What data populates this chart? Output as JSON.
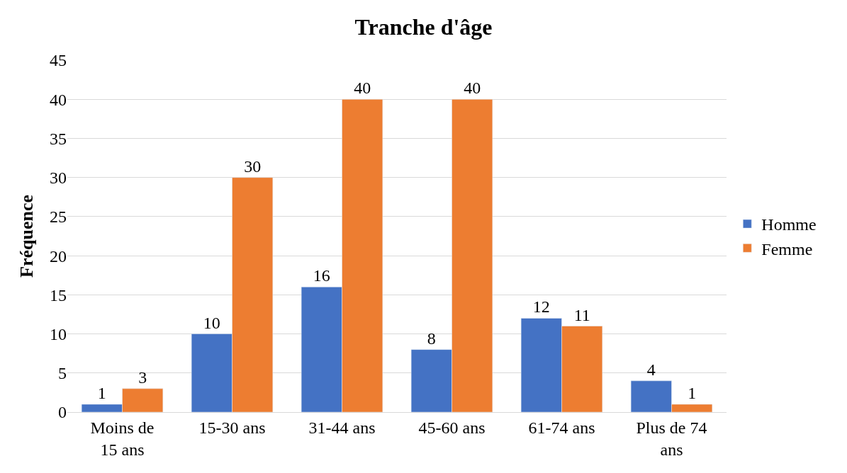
{
  "chart_data": {
    "type": "bar",
    "title": "Tranche d'âge",
    "ylabel": "Fréquence",
    "categories": [
      "Moins de 15 ans",
      "15-30 ans",
      "31-44 ans",
      "45-60 ans",
      "61-74 ans",
      "Plus de 74 ans"
    ],
    "series": [
      {
        "name": "Homme",
        "color": "#4472c4",
        "values": [
          1,
          10,
          16,
          8,
          12,
          4
        ]
      },
      {
        "name": "Femme",
        "color": "#ed7d31",
        "values": [
          3,
          30,
          40,
          40,
          11,
          1
        ]
      }
    ],
    "ylim": [
      0,
      45
    ],
    "yticks": [
      0,
      5,
      10,
      15,
      20,
      25,
      30,
      35,
      40,
      45
    ],
    "grid": "y",
    "legend": "right",
    "data_labels": true
  }
}
